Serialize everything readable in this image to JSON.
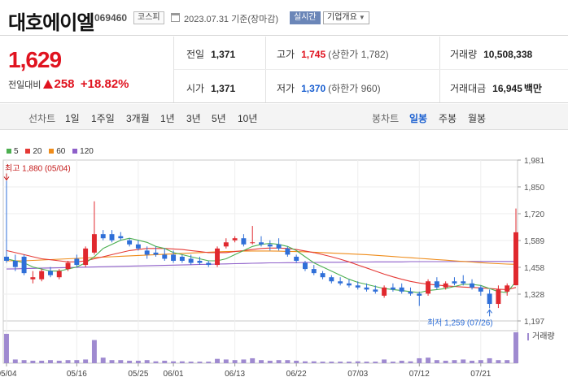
{
  "header": {
    "title": "대호에이엘",
    "code": "069460",
    "market": "코스피",
    "date_text": "2023.07.31 기준(장마감)",
    "realtime_label": "실시간",
    "company_label": "기업개요"
  },
  "quote": {
    "price": "1,629",
    "change_label": "전일대비",
    "change_value": "258",
    "change_pct": "+18.82%",
    "prev_label": "전일",
    "prev_value": "1,371",
    "open_label": "시가",
    "open_value": "1,371",
    "high_label": "고가",
    "high_value": "1,745",
    "upper_limit": "(상한가 1,782)",
    "low_label": "저가",
    "low_value": "1,370",
    "lower_limit": "(하한가 960)",
    "volume_label": "거래량",
    "volume_value": "10,508,338",
    "amount_label": "거래대금",
    "amount_value": "16,945",
    "amount_unit": "백만"
  },
  "tabs": {
    "line_label": "선차트",
    "line_tabs": [
      "1일",
      "1주일",
      "3개월",
      "1년",
      "3년",
      "5년",
      "10년"
    ],
    "candle_label": "봉차트",
    "candle_tabs": [
      "일봉",
      "주봉",
      "월봉"
    ],
    "active_candle": "일봉"
  },
  "legend": [
    {
      "label": "5",
      "color": "#4caf50"
    },
    {
      "label": "20",
      "color": "#e53935"
    },
    {
      "label": "60",
      "color": "#ef8c1a"
    },
    {
      "label": "120",
      "color": "#8e5fc9"
    }
  ],
  "chart_data": {
    "type": "candlestick",
    "title": "대호에이엘 일봉",
    "y_ticks": [
      "1,981",
      "1,850",
      "1,720",
      "1,589",
      "1,458",
      "1,328",
      "1,197"
    ],
    "ylim": [
      1197,
      1981
    ],
    "x_ticks": [
      {
        "label": "05/04",
        "index": 0
      },
      {
        "label": "05/16",
        "index": 8
      },
      {
        "label": "05/25",
        "index": 15
      },
      {
        "label": "06/01",
        "index": 19
      },
      {
        "label": "06/13",
        "index": 26
      },
      {
        "label": "06/22",
        "index": 33
      },
      {
        "label": "07/03",
        "index": 40
      },
      {
        "label": "07/12",
        "index": 47
      },
      {
        "label": "07/21",
        "index": 54
      }
    ],
    "high_annotation": "최고 1,880 (05/04)",
    "low_annotation": "최저 1,259 (07/26)",
    "volume_label": "거래량",
    "candles": [
      {
        "o": 1510,
        "h": 1880,
        "l": 1480,
        "c": 1490
      },
      {
        "o": 1490,
        "h": 1520,
        "l": 1440,
        "c": 1460
      },
      {
        "o": 1510,
        "h": 1520,
        "l": 1420,
        "c": 1430
      },
      {
        "o": 1400,
        "h": 1440,
        "l": 1380,
        "c": 1410
      },
      {
        "o": 1400,
        "h": 1450,
        "l": 1390,
        "c": 1440
      },
      {
        "o": 1440,
        "h": 1460,
        "l": 1410,
        "c": 1420
      },
      {
        "o": 1410,
        "h": 1450,
        "l": 1400,
        "c": 1440
      },
      {
        "o": 1450,
        "h": 1490,
        "l": 1440,
        "c": 1480
      },
      {
        "o": 1500,
        "h": 1520,
        "l": 1460,
        "c": 1470
      },
      {
        "o": 1470,
        "h": 1560,
        "l": 1460,
        "c": 1550
      },
      {
        "o": 1530,
        "h": 1780,
        "l": 1520,
        "c": 1620
      },
      {
        "o": 1620,
        "h": 1640,
        "l": 1590,
        "c": 1600
      },
      {
        "o": 1620,
        "h": 1640,
        "l": 1580,
        "c": 1590
      },
      {
        "o": 1610,
        "h": 1630,
        "l": 1590,
        "c": 1600
      },
      {
        "o": 1590,
        "h": 1600,
        "l": 1560,
        "c": 1570
      },
      {
        "o": 1570,
        "h": 1590,
        "l": 1540,
        "c": 1550
      },
      {
        "o": 1540,
        "h": 1560,
        "l": 1500,
        "c": 1520
      },
      {
        "o": 1530,
        "h": 1560,
        "l": 1510,
        "c": 1520
      },
      {
        "o": 1520,
        "h": 1550,
        "l": 1490,
        "c": 1500
      },
      {
        "o": 1520,
        "h": 1540,
        "l": 1480,
        "c": 1490
      },
      {
        "o": 1510,
        "h": 1520,
        "l": 1480,
        "c": 1490
      },
      {
        "o": 1500,
        "h": 1520,
        "l": 1470,
        "c": 1480
      },
      {
        "o": 1490,
        "h": 1510,
        "l": 1470,
        "c": 1480
      },
      {
        "o": 1480,
        "h": 1490,
        "l": 1460,
        "c": 1470
      },
      {
        "o": 1470,
        "h": 1560,
        "l": 1460,
        "c": 1550
      },
      {
        "o": 1560,
        "h": 1600,
        "l": 1550,
        "c": 1580
      },
      {
        "o": 1590,
        "h": 1610,
        "l": 1580,
        "c": 1600
      },
      {
        "o": 1600,
        "h": 1620,
        "l": 1560,
        "c": 1570
      },
      {
        "o": 1580,
        "h": 1660,
        "l": 1570,
        "c": 1580
      },
      {
        "o": 1580,
        "h": 1610,
        "l": 1560,
        "c": 1570
      },
      {
        "o": 1570,
        "h": 1590,
        "l": 1540,
        "c": 1560
      },
      {
        "o": 1570,
        "h": 1600,
        "l": 1540,
        "c": 1550
      },
      {
        "o": 1550,
        "h": 1560,
        "l": 1510,
        "c": 1520
      },
      {
        "o": 1510,
        "h": 1520,
        "l": 1480,
        "c": 1490
      },
      {
        "o": 1480,
        "h": 1490,
        "l": 1440,
        "c": 1450
      },
      {
        "o": 1450,
        "h": 1470,
        "l": 1420,
        "c": 1430
      },
      {
        "o": 1430,
        "h": 1440,
        "l": 1400,
        "c": 1410
      },
      {
        "o": 1410,
        "h": 1420,
        "l": 1380,
        "c": 1390
      },
      {
        "o": 1390,
        "h": 1410,
        "l": 1370,
        "c": 1380
      },
      {
        "o": 1380,
        "h": 1400,
        "l": 1360,
        "c": 1370
      },
      {
        "o": 1370,
        "h": 1390,
        "l": 1350,
        "c": 1360
      },
      {
        "o": 1360,
        "h": 1380,
        "l": 1340,
        "c": 1350
      },
      {
        "o": 1350,
        "h": 1370,
        "l": 1330,
        "c": 1340
      },
      {
        "o": 1320,
        "h": 1370,
        "l": 1310,
        "c": 1360
      },
      {
        "o": 1360,
        "h": 1380,
        "l": 1340,
        "c": 1350
      },
      {
        "o": 1360,
        "h": 1380,
        "l": 1330,
        "c": 1340
      },
      {
        "o": 1340,
        "h": 1360,
        "l": 1320,
        "c": 1330
      },
      {
        "o": 1330,
        "h": 1340,
        "l": 1270,
        "c": 1320
      },
      {
        "o": 1330,
        "h": 1400,
        "l": 1320,
        "c": 1390
      },
      {
        "o": 1390,
        "h": 1410,
        "l": 1350,
        "c": 1360
      },
      {
        "o": 1360,
        "h": 1390,
        "l": 1350,
        "c": 1380
      },
      {
        "o": 1390,
        "h": 1410,
        "l": 1370,
        "c": 1380
      },
      {
        "o": 1390,
        "h": 1420,
        "l": 1370,
        "c": 1380
      },
      {
        "o": 1380,
        "h": 1400,
        "l": 1350,
        "c": 1360
      },
      {
        "o": 1360,
        "h": 1370,
        "l": 1320,
        "c": 1340
      },
      {
        "o": 1330,
        "h": 1350,
        "l": 1259,
        "c": 1280
      },
      {
        "o": 1280,
        "h": 1370,
        "l": 1260,
        "c": 1350
      },
      {
        "o": 1340,
        "h": 1380,
        "l": 1320,
        "c": 1370
      },
      {
        "o": 1371,
        "h": 1745,
        "l": 1370,
        "c": 1629
      }
    ],
    "ma5": [
      1500,
      1490,
      1480,
      1460,
      1450,
      1440,
      1440,
      1450,
      1460,
      1480,
      1510,
      1550,
      1570,
      1590,
      1600,
      1590,
      1580,
      1560,
      1550,
      1530,
      1520,
      1510,
      1500,
      1490,
      1490,
      1500,
      1520,
      1540,
      1560,
      1570,
      1575,
      1570,
      1560,
      1540,
      1510,
      1480,
      1460,
      1440,
      1420,
      1400,
      1385,
      1375,
      1365,
      1355,
      1350,
      1345,
      1340,
      1335,
      1345,
      1350,
      1355,
      1365,
      1375,
      1375,
      1370,
      1355,
      1340,
      1335,
      1390
    ],
    "ma20": [
      1540,
      1530,
      1520,
      1510,
      1500,
      1495,
      1490,
      1485,
      1485,
      1490,
      1500,
      1510,
      1520,
      1530,
      1540,
      1545,
      1550,
      1550,
      1550,
      1548,
      1545,
      1540,
      1535,
      1530,
      1530,
      1530,
      1535,
      1540,
      1545,
      1550,
      1552,
      1552,
      1550,
      1545,
      1538,
      1530,
      1520,
      1510,
      1498,
      1485,
      1470,
      1455,
      1440,
      1425,
      1412,
      1400,
      1390,
      1382,
      1376,
      1372,
      1368,
      1365,
      1362,
      1360,
      1358,
      1355,
      1352,
      1350,
      1360
    ],
    "ma60": [
      1490,
      1490,
      1490,
      1492,
      1494,
      1496,
      1498,
      1500,
      1502,
      1504,
      1506,
      1508,
      1510,
      1512,
      1514,
      1516,
      1518,
      1520,
      1522,
      1524,
      1526,
      1528,
      1530,
      1532,
      1534,
      1535,
      1536,
      1537,
      1538,
      1538,
      1538,
      1537,
      1536,
      1535,
      1534,
      1532,
      1530,
      1528,
      1526,
      1524,
      1522,
      1520,
      1517,
      1514,
      1511,
      1508,
      1505,
      1502,
      1499,
      1496,
      1493,
      1490,
      1487,
      1484,
      1481,
      1478,
      1476,
      1474,
      1473
    ],
    "ma120": [
      1450,
      1451,
      1452,
      1453,
      1454,
      1455,
      1456,
      1457,
      1458,
      1459,
      1460,
      1461,
      1462,
      1463,
      1464,
      1465,
      1466,
      1467,
      1468,
      1469,
      1470,
      1471,
      1472,
      1473,
      1474,
      1475,
      1476,
      1477,
      1478,
      1479,
      1480,
      1480,
      1481,
      1481,
      1482,
      1482,
      1483,
      1483,
      1483,
      1484,
      1484,
      1484,
      1485,
      1485,
      1485,
      1485,
      1486,
      1486,
      1486,
      1486,
      1486,
      1487,
      1487,
      1487,
      1487,
      1487,
      1487,
      1487,
      1487
    ],
    "volumes": [
      0.95,
      0.12,
      0.1,
      0.08,
      0.08,
      0.1,
      0.08,
      0.1,
      0.1,
      0.12,
      0.75,
      0.18,
      0.1,
      0.1,
      0.08,
      0.08,
      0.1,
      0.06,
      0.08,
      0.06,
      0.06,
      0.05,
      0.05,
      0.05,
      0.14,
      0.12,
      0.1,
      0.12,
      0.16,
      0.1,
      0.08,
      0.1,
      0.1,
      0.08,
      0.06,
      0.06,
      0.05,
      0.05,
      0.05,
      0.05,
      0.06,
      0.05,
      0.05,
      0.12,
      0.05,
      0.08,
      0.06,
      0.16,
      0.18,
      0.1,
      0.08,
      0.1,
      0.12,
      0.08,
      0.1,
      0.16,
      0.1,
      0.1,
      1.0
    ]
  }
}
